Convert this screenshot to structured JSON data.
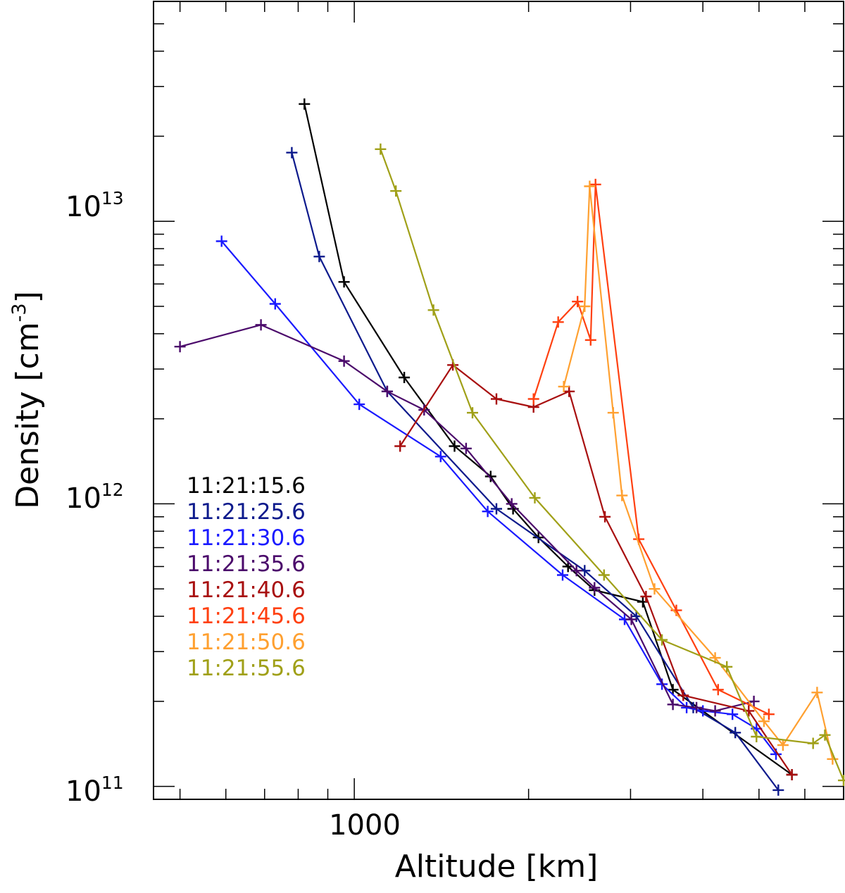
{
  "chart_data": {
    "type": "line",
    "xscale": "log",
    "yscale": "log",
    "xlim": [
      450,
      7000
    ],
    "ylim": [
      90000000000.0,
      60000000000000.0
    ],
    "xlabel": "Altitude [km]",
    "ylabel": "Density [cm",
    "ylabel_sup": "-3",
    "ylabel_end": "]",
    "x_major_ticks": [
      {
        "value": 1000,
        "label": "1000"
      }
    ],
    "y_major_ticks": [
      {
        "value": 100000000000.0,
        "base": "10",
        "exp": "11"
      },
      {
        "value": 1000000000000.0,
        "base": "10",
        "exp": "12"
      },
      {
        "value": 10000000000000.0,
        "base": "10",
        "exp": "13"
      }
    ],
    "marker": "plus",
    "series": [
      {
        "name": "11:21:15.6",
        "color": "#000000",
        "x": [
          820,
          960,
          1220,
          1490,
          1720,
          1880,
          2080,
          2340,
          2600,
          3150,
          3550,
          5700
        ],
        "y": [
          26000000000000.0,
          6100000000000.0,
          2800000000000.0,
          1600000000000.0,
          1250000000000.0,
          960000000000.0,
          760000000000.0,
          600000000000.0,
          495000000000.0,
          450000000000.0,
          220000000000.0,
          110000000000.0
        ]
      },
      {
        "name": "11:21:25.6",
        "color": "#0d1a8c",
        "x": [
          780,
          870,
          1140,
          1760,
          2500,
          3070,
          3850,
          4550,
          5400
        ],
        "y": [
          17500000000000.0,
          7500000000000.0,
          2500000000000.0,
          960000000000.0,
          580000000000.0,
          400000000000.0,
          190000000000.0,
          155000000000.0,
          97000000000.0
        ]
      },
      {
        "name": "11:21:30.6",
        "color": "#1a1aff",
        "x": [
          590,
          730,
          1020,
          1410,
          1700,
          2290,
          2930,
          3400,
          3750,
          4000,
          4500,
          4950,
          5350
        ],
        "y": [
          8500000000000.0,
          5100000000000.0,
          2250000000000.0,
          1470000000000.0,
          940000000000.0,
          560000000000.0,
          390000000000.0,
          230000000000.0,
          190000000000.0,
          185000000000.0,
          180000000000.0,
          160000000000.0,
          130000000000.0
        ]
      },
      {
        "name": "11:21:35.6",
        "color": "#4b0a6b",
        "x": [
          500,
          690,
          960,
          1140,
          1320,
          1560,
          1870,
          2420,
          2600,
          3010,
          3550,
          3900,
          4200,
          4900
        ],
        "y": [
          3600000000000.0,
          4300000000000.0,
          3200000000000.0,
          2500000000000.0,
          2150000000000.0,
          1570000000000.0,
          1000000000000.0,
          580000000000.0,
          505000000000.0,
          390000000000.0,
          195000000000.0,
          190000000000.0,
          185000000000.0,
          200000000000.0
        ]
      },
      {
        "name": "11:21:40.6",
        "color": "#a80f0f",
        "x": [
          1200,
          1480,
          1760,
          2040,
          2350,
          2710,
          3190,
          3700,
          4800,
          5700
        ],
        "y": [
          1600000000000.0,
          3100000000000.0,
          2350000000000.0,
          2200000000000.0,
          2500000000000.0,
          900000000000.0,
          470000000000.0,
          210000000000.0,
          185000000000.0,
          110000000000.0
        ]
      },
      {
        "name": "11:21:45.6",
        "color": "#ff4010",
        "x": [
          2040,
          2250,
          2430,
          2560,
          2610,
          3100,
          3600,
          4250,
          5200
        ],
        "y": [
          2350000000000.0,
          4400000000000.0,
          5200000000000.0,
          3800000000000.0,
          13500000000000.0,
          750000000000.0,
          420000000000.0,
          220000000000.0,
          180000000000.0
        ]
      },
      {
        "name": "11:21:50.6",
        "color": "#ffa030",
        "x": [
          2300,
          2500,
          2550,
          2800,
          2900,
          3300,
          4200,
          5100,
          5500,
          6300,
          6700
        ],
        "y": [
          2600000000000.0,
          5000000000000.0,
          13300000000000.0,
          2100000000000.0,
          1070000000000.0,
          500000000000.0,
          285000000000.0,
          170000000000.0,
          140000000000.0,
          215000000000.0,
          125000000000.0
        ]
      },
      {
        "name": "11:21:55.6",
        "color": "#a0a018",
        "x": [
          1110,
          1180,
          1370,
          1600,
          2050,
          2700,
          3400,
          4400,
          4950,
          6200,
          6500,
          7000
        ],
        "y": [
          18000000000000.0,
          12800000000000.0,
          4850000000000.0,
          2100000000000.0,
          1050000000000.0,
          560000000000.0,
          330000000000.0,
          265000000000.0,
          150000000000.0,
          142000000000.0,
          152000000000.0,
          105000000000.0
        ]
      }
    ]
  }
}
